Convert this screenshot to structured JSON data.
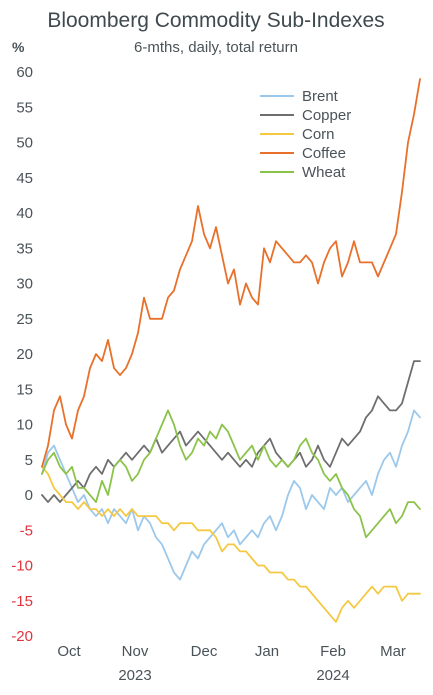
{
  "chart_data": {
    "type": "line",
    "title": "Bloomberg Commodity Sub-Indexes",
    "subtitle": "6-mths, daily, total return",
    "ylabel": "%",
    "ylim": [
      -20,
      60
    ],
    "yticks": [
      -20,
      -15,
      -10,
      -5,
      0,
      5,
      10,
      15,
      20,
      25,
      30,
      35,
      40,
      45,
      50,
      55,
      60
    ],
    "xlim": [
      0,
      126
    ],
    "xticks": [
      {
        "label": "Oct",
        "x": 9
      },
      {
        "label": "Nov",
        "x": 31
      },
      {
        "label": "Dec",
        "x": 54
      },
      {
        "label": "Jan",
        "x": 75
      },
      {
        "label": "Feb",
        "x": 97
      },
      {
        "label": "Mar",
        "x": 117
      }
    ],
    "xyears": [
      {
        "label": "2023",
        "x": 31
      },
      {
        "label": "2024",
        "x": 97
      }
    ],
    "legend_position": "top-right",
    "grid": false,
    "series": [
      {
        "name": "Brent",
        "color": "#9cc8eb",
        "points": [
          [
            0,
            3
          ],
          [
            2,
            6
          ],
          [
            4,
            7
          ],
          [
            6,
            5
          ],
          [
            8,
            3
          ],
          [
            10,
            1
          ],
          [
            12,
            -1
          ],
          [
            14,
            0
          ],
          [
            16,
            -2
          ],
          [
            18,
            -3
          ],
          [
            20,
            -2
          ],
          [
            22,
            -4
          ],
          [
            24,
            -2
          ],
          [
            26,
            -3
          ],
          [
            28,
            -4
          ],
          [
            30,
            -2
          ],
          [
            32,
            -5
          ],
          [
            34,
            -3
          ],
          [
            36,
            -4
          ],
          [
            38,
            -6
          ],
          [
            40,
            -7
          ],
          [
            42,
            -9
          ],
          [
            44,
            -11
          ],
          [
            46,
            -12
          ],
          [
            48,
            -10
          ],
          [
            50,
            -8
          ],
          [
            52,
            -9
          ],
          [
            54,
            -7
          ],
          [
            56,
            -6
          ],
          [
            58,
            -5
          ],
          [
            60,
            -4
          ],
          [
            62,
            -6
          ],
          [
            64,
            -5
          ],
          [
            66,
            -7
          ],
          [
            68,
            -6
          ],
          [
            70,
            -5
          ],
          [
            72,
            -6
          ],
          [
            74,
            -4
          ],
          [
            76,
            -3
          ],
          [
            78,
            -5
          ],
          [
            80,
            -3
          ],
          [
            82,
            0
          ],
          [
            84,
            2
          ],
          [
            86,
            1
          ],
          [
            88,
            -2
          ],
          [
            90,
            0
          ],
          [
            92,
            -1
          ],
          [
            94,
            -2
          ],
          [
            96,
            1
          ],
          [
            98,
            0
          ],
          [
            100,
            1
          ],
          [
            102,
            -1
          ],
          [
            104,
            0
          ],
          [
            106,
            1
          ],
          [
            108,
            2
          ],
          [
            110,
            0
          ],
          [
            112,
            3
          ],
          [
            114,
            5
          ],
          [
            116,
            6
          ],
          [
            118,
            4
          ],
          [
            120,
            7
          ],
          [
            122,
            9
          ],
          [
            124,
            12
          ],
          [
            126,
            11
          ]
        ]
      },
      {
        "name": "Copper",
        "color": "#6e6e6e",
        "points": [
          [
            0,
            0
          ],
          [
            2,
            -1
          ],
          [
            4,
            0
          ],
          [
            6,
            -1
          ],
          [
            8,
            0
          ],
          [
            10,
            1
          ],
          [
            12,
            2
          ],
          [
            14,
            1
          ],
          [
            16,
            3
          ],
          [
            18,
            4
          ],
          [
            20,
            3
          ],
          [
            22,
            5
          ],
          [
            24,
            4
          ],
          [
            26,
            5
          ],
          [
            28,
            6
          ],
          [
            30,
            5
          ],
          [
            32,
            6
          ],
          [
            34,
            7
          ],
          [
            36,
            6
          ],
          [
            38,
            8
          ],
          [
            40,
            6
          ],
          [
            42,
            7
          ],
          [
            44,
            8
          ],
          [
            46,
            9
          ],
          [
            48,
            7
          ],
          [
            50,
            8
          ],
          [
            52,
            9
          ],
          [
            54,
            8
          ],
          [
            56,
            7
          ],
          [
            58,
            6
          ],
          [
            60,
            5
          ],
          [
            62,
            6
          ],
          [
            64,
            5
          ],
          [
            66,
            4
          ],
          [
            68,
            5
          ],
          [
            70,
            4
          ],
          [
            72,
            6
          ],
          [
            74,
            7
          ],
          [
            76,
            8
          ],
          [
            78,
            6
          ],
          [
            80,
            5
          ],
          [
            82,
            4
          ],
          [
            84,
            5
          ],
          [
            86,
            6
          ],
          [
            88,
            4
          ],
          [
            90,
            5
          ],
          [
            92,
            7
          ],
          [
            94,
            5
          ],
          [
            96,
            4
          ],
          [
            98,
            6
          ],
          [
            100,
            8
          ],
          [
            102,
            7
          ],
          [
            104,
            8
          ],
          [
            106,
            9
          ],
          [
            108,
            11
          ],
          [
            110,
            12
          ],
          [
            112,
            14
          ],
          [
            114,
            13
          ],
          [
            116,
            12
          ],
          [
            118,
            12
          ],
          [
            120,
            13
          ],
          [
            122,
            16
          ],
          [
            124,
            19
          ],
          [
            126,
            19
          ]
        ]
      },
      {
        "name": "Corn",
        "color": "#f5c842",
        "points": [
          [
            0,
            4
          ],
          [
            2,
            3
          ],
          [
            4,
            1
          ],
          [
            6,
            0
          ],
          [
            8,
            -1
          ],
          [
            10,
            -1
          ],
          [
            12,
            -2
          ],
          [
            14,
            -1
          ],
          [
            16,
            -2
          ],
          [
            18,
            -2
          ],
          [
            20,
            -3
          ],
          [
            22,
            -2
          ],
          [
            24,
            -3
          ],
          [
            26,
            -2
          ],
          [
            28,
            -3
          ],
          [
            30,
            -2
          ],
          [
            32,
            -3
          ],
          [
            34,
            -3
          ],
          [
            36,
            -3
          ],
          [
            38,
            -3
          ],
          [
            40,
            -4
          ],
          [
            42,
            -4
          ],
          [
            44,
            -5
          ],
          [
            46,
            -4
          ],
          [
            48,
            -4
          ],
          [
            50,
            -4
          ],
          [
            52,
            -5
          ],
          [
            54,
            -5
          ],
          [
            56,
            -5
          ],
          [
            58,
            -6
          ],
          [
            60,
            -8
          ],
          [
            62,
            -7
          ],
          [
            64,
            -7
          ],
          [
            66,
            -8
          ],
          [
            68,
            -8
          ],
          [
            70,
            -9
          ],
          [
            72,
            -10
          ],
          [
            74,
            -10
          ],
          [
            76,
            -11
          ],
          [
            78,
            -11
          ],
          [
            80,
            -11
          ],
          [
            82,
            -12
          ],
          [
            84,
            -12
          ],
          [
            86,
            -13
          ],
          [
            88,
            -13
          ],
          [
            90,
            -14
          ],
          [
            92,
            -15
          ],
          [
            94,
            -16
          ],
          [
            96,
            -17
          ],
          [
            98,
            -18
          ],
          [
            100,
            -16
          ],
          [
            102,
            -15
          ],
          [
            104,
            -16
          ],
          [
            106,
            -15
          ],
          [
            108,
            -14
          ],
          [
            110,
            -13
          ],
          [
            112,
            -14
          ],
          [
            114,
            -13
          ],
          [
            116,
            -13
          ],
          [
            118,
            -13
          ],
          [
            120,
            -15
          ],
          [
            122,
            -14
          ],
          [
            124,
            -14
          ],
          [
            126,
            -14
          ]
        ]
      },
      {
        "name": "Coffee",
        "color": "#e8702a",
        "points": [
          [
            0,
            4
          ],
          [
            2,
            7
          ],
          [
            4,
            12
          ],
          [
            6,
            14
          ],
          [
            8,
            10
          ],
          [
            10,
            8
          ],
          [
            12,
            12
          ],
          [
            14,
            14
          ],
          [
            16,
            18
          ],
          [
            18,
            20
          ],
          [
            20,
            19
          ],
          [
            22,
            22
          ],
          [
            24,
            18
          ],
          [
            26,
            17
          ],
          [
            28,
            18
          ],
          [
            30,
            20
          ],
          [
            32,
            23
          ],
          [
            34,
            28
          ],
          [
            36,
            25
          ],
          [
            38,
            25
          ],
          [
            40,
            25
          ],
          [
            42,
            28
          ],
          [
            44,
            29
          ],
          [
            46,
            32
          ],
          [
            48,
            34
          ],
          [
            50,
            36
          ],
          [
            52,
            41
          ],
          [
            54,
            37
          ],
          [
            56,
            35
          ],
          [
            58,
            38
          ],
          [
            60,
            34
          ],
          [
            62,
            30
          ],
          [
            64,
            32
          ],
          [
            66,
            27
          ],
          [
            68,
            30
          ],
          [
            70,
            28
          ],
          [
            72,
            27
          ],
          [
            74,
            35
          ],
          [
            76,
            33
          ],
          [
            78,
            36
          ],
          [
            80,
            35
          ],
          [
            82,
            34
          ],
          [
            84,
            33
          ],
          [
            86,
            33
          ],
          [
            88,
            34
          ],
          [
            90,
            33
          ],
          [
            92,
            30
          ],
          [
            94,
            33
          ],
          [
            96,
            35
          ],
          [
            98,
            36
          ],
          [
            100,
            31
          ],
          [
            102,
            33
          ],
          [
            104,
            36
          ],
          [
            106,
            33
          ],
          [
            108,
            33
          ],
          [
            110,
            33
          ],
          [
            112,
            31
          ],
          [
            114,
            33
          ],
          [
            116,
            35
          ],
          [
            118,
            37
          ],
          [
            120,
            43
          ],
          [
            122,
            50
          ],
          [
            124,
            54
          ],
          [
            126,
            59
          ]
        ]
      },
      {
        "name": "Wheat",
        "color": "#8bc34a",
        "points": [
          [
            0,
            3
          ],
          [
            2,
            5
          ],
          [
            4,
            6
          ],
          [
            6,
            4
          ],
          [
            8,
            3
          ],
          [
            10,
            4
          ],
          [
            12,
            1
          ],
          [
            14,
            1
          ],
          [
            16,
            0
          ],
          [
            18,
            -1
          ],
          [
            20,
            2
          ],
          [
            22,
            0
          ],
          [
            24,
            4
          ],
          [
            26,
            5
          ],
          [
            28,
            4
          ],
          [
            30,
            2
          ],
          [
            32,
            3
          ],
          [
            34,
            5
          ],
          [
            36,
            6
          ],
          [
            38,
            8
          ],
          [
            40,
            10
          ],
          [
            42,
            12
          ],
          [
            44,
            10
          ],
          [
            46,
            7
          ],
          [
            48,
            5
          ],
          [
            50,
            6
          ],
          [
            52,
            8
          ],
          [
            54,
            7
          ],
          [
            56,
            9
          ],
          [
            58,
            8
          ],
          [
            60,
            10
          ],
          [
            62,
            9
          ],
          [
            64,
            7
          ],
          [
            66,
            5
          ],
          [
            68,
            6
          ],
          [
            70,
            7
          ],
          [
            72,
            5
          ],
          [
            74,
            7
          ],
          [
            76,
            5
          ],
          [
            78,
            4
          ],
          [
            80,
            5
          ],
          [
            82,
            4
          ],
          [
            84,
            5
          ],
          [
            86,
            7
          ],
          [
            88,
            8
          ],
          [
            90,
            6
          ],
          [
            92,
            5
          ],
          [
            94,
            3
          ],
          [
            96,
            2
          ],
          [
            98,
            3
          ],
          [
            100,
            1
          ],
          [
            102,
            0
          ],
          [
            104,
            -2
          ],
          [
            106,
            -3
          ],
          [
            108,
            -6
          ],
          [
            110,
            -5
          ],
          [
            112,
            -4
          ],
          [
            114,
            -3
          ],
          [
            116,
            -2
          ],
          [
            118,
            -4
          ],
          [
            120,
            -3
          ],
          [
            122,
            -1
          ],
          [
            124,
            -1
          ],
          [
            126,
            -2
          ]
        ]
      }
    ]
  }
}
